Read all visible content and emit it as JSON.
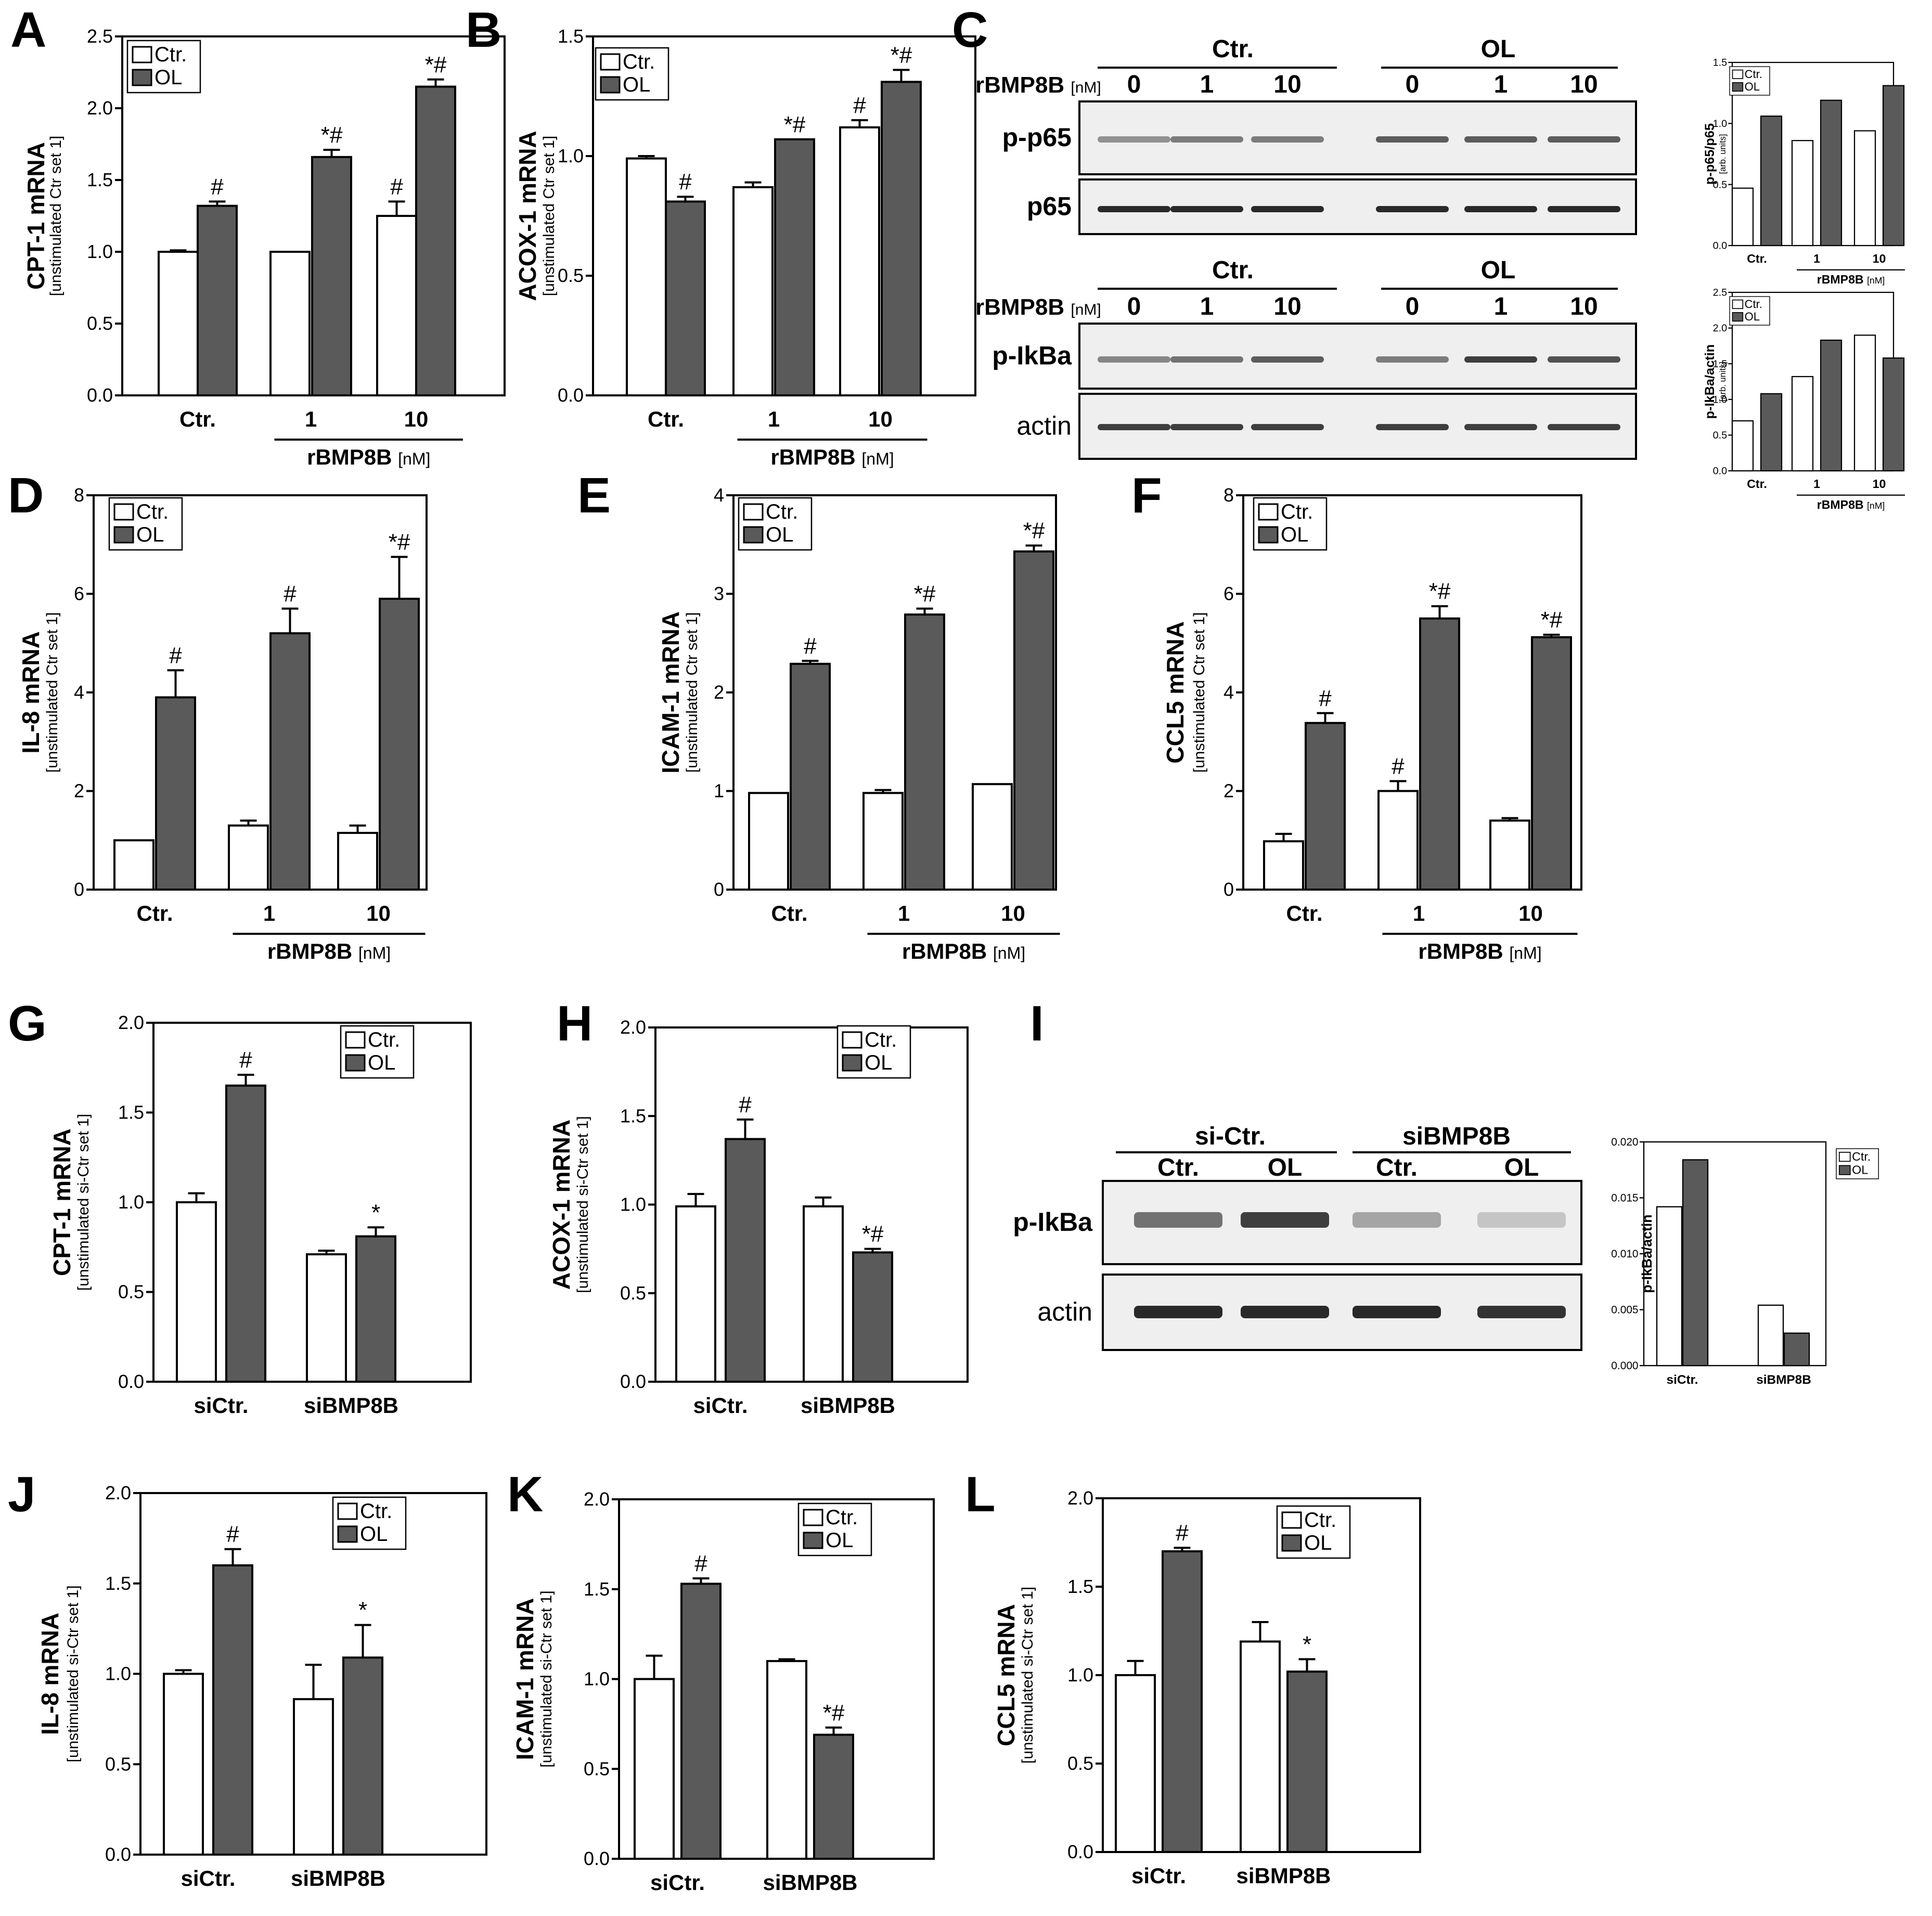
{
  "figure": {
    "colors": {
      "ctr_fill": "#ffffff",
      "ol_fill": "#5a5a5a",
      "axis": "#000000",
      "blot_bg": "#efefef",
      "band": "#1e1e1e"
    },
    "legend": {
      "ctr": "Ctr.",
      "ol": "OL"
    },
    "stim_labels": {
      "ctr": "Ctr.",
      "one": "1",
      "ten": "10",
      "group": "rBMP8B",
      "unit": "[nM]"
    },
    "si_labels": {
      "sictr": "siCtr.",
      "sibmp": "siBMP8B"
    },
    "panel_letters": [
      "A",
      "B",
      "C",
      "D",
      "E",
      "F",
      "G",
      "H",
      "I",
      "J",
      "K",
      "L"
    ],
    "blot_c": {
      "group_ctr": "Ctr.",
      "group_ol": "OL",
      "rbmp_label": "rBMP8B",
      "nm_label": "[nM]",
      "doses": [
        "0",
        "1",
        "10",
        "0",
        "1",
        "10"
      ],
      "rows_top": [
        "p-p65",
        "p65"
      ],
      "rows_bottom": [
        "p-IkBa",
        "actin"
      ]
    },
    "blot_i": {
      "group_sictr": "si-Ctr.",
      "group_sibmp": "siBMP8B",
      "lanes": [
        "Ctr.",
        "OL",
        "Ctr.",
        "OL"
      ],
      "rows": [
        "p-IkBa",
        "actin"
      ]
    }
  },
  "chart_data": [
    {
      "panel": "A",
      "type": "bar",
      "ylabel": "CPT-1 mRNA",
      "ylabel_sub": "[unstimulated Ctr set 1]",
      "ylim": [
        0,
        2.5
      ],
      "yticks": [
        "0.0",
        "0.5",
        "1.0",
        "1.5",
        "2.0",
        "2.5"
      ],
      "categories": [
        "Ctr.",
        "1",
        "10"
      ],
      "xgroup": "rBMP8B [nM]",
      "series": [
        {
          "name": "Ctr.",
          "values": [
            1.0,
            1.0,
            1.25
          ],
          "errors": [
            0.01,
            0,
            0.1
          ],
          "marks": [
            "",
            "",
            "#"
          ]
        },
        {
          "name": "OL",
          "values": [
            1.32,
            1.66,
            2.15
          ],
          "errors": [
            0.03,
            0.05,
            0.05
          ],
          "marks": [
            "#",
            "*#",
            "*#"
          ]
        }
      ]
    },
    {
      "panel": "B",
      "type": "bar",
      "ylabel": "ACOX-1 mRNA",
      "ylabel_sub": "[unstimulated Ctr set 1]",
      "ylim": [
        0,
        1.5
      ],
      "yticks": [
        "0.0",
        "0.5",
        "1.0",
        "1.5"
      ],
      "categories": [
        "Ctr.",
        "1",
        "10"
      ],
      "xgroup": "rBMP8B [nM]",
      "series": [
        {
          "name": "Ctr.",
          "values": [
            0.99,
            0.87,
            1.12
          ],
          "errors": [
            0.01,
            0.02,
            0.03
          ],
          "marks": [
            "",
            "",
            "#"
          ]
        },
        {
          "name": "OL",
          "values": [
            0.81,
            1.07,
            1.31
          ],
          "errors": [
            0.02,
            0,
            0.05
          ],
          "marks": [
            "#",
            "*#",
            "*#"
          ]
        }
      ]
    },
    {
      "panel": "C-top",
      "type": "bar",
      "ylabel": "p-p65/p65",
      "ylabel_sub": "[arb. units]",
      "ylim": [
        0,
        1.5
      ],
      "yticks": [
        "0.0",
        "0.5",
        "1.0",
        "1.5"
      ],
      "categories": [
        "Ctr.",
        "1",
        "10"
      ],
      "xgroup": "rBMP8B [nM]",
      "series": [
        {
          "name": "Ctr.",
          "values": [
            0.47,
            0.86,
            0.94
          ]
        },
        {
          "name": "OL",
          "values": [
            1.06,
            1.19,
            1.31
          ]
        }
      ]
    },
    {
      "panel": "C-bottom",
      "type": "bar",
      "ylabel": "p-IkBa/actin",
      "ylabel_sub": "[arb. units]",
      "ylim": [
        0,
        2.5
      ],
      "yticks": [
        "0.0",
        "0.5",
        "1.0",
        "1.5",
        "2.0",
        "2.5"
      ],
      "categories": [
        "Ctr.",
        "1",
        "10"
      ],
      "xgroup": "rBMP8B [nM]",
      "series": [
        {
          "name": "Ctr.",
          "values": [
            0.7,
            1.32,
            1.9
          ]
        },
        {
          "name": "OL",
          "values": [
            1.08,
            1.83,
            1.58
          ]
        }
      ]
    },
    {
      "panel": "D",
      "type": "bar",
      "ylabel": "IL-8 mRNA",
      "ylabel_sub": "[unstimulated Ctr set 1]",
      "ylim": [
        0,
        8
      ],
      "yticks": [
        "0",
        "2",
        "4",
        "6",
        "8"
      ],
      "categories": [
        "Ctr.",
        "1",
        "10"
      ],
      "xgroup": "rBMP8B [nM]",
      "series": [
        {
          "name": "Ctr.",
          "values": [
            1.0,
            1.3,
            1.15
          ],
          "errors": [
            0,
            0.1,
            0.15
          ],
          "marks": [
            "",
            "",
            ""
          ]
        },
        {
          "name": "OL",
          "values": [
            3.9,
            5.2,
            5.9
          ],
          "errors": [
            0.55,
            0.5,
            0.85
          ],
          "marks": [
            "#",
            "#",
            "*#"
          ]
        }
      ]
    },
    {
      "panel": "E",
      "type": "bar",
      "ylabel": "ICAM-1 mRNA",
      "ylabel_sub": "[unstimulated Ctr set 1]",
      "ylim": [
        0,
        4
      ],
      "yticks": [
        "0",
        "1",
        "2",
        "3",
        "4"
      ],
      "categories": [
        "Ctr.",
        "1",
        "10"
      ],
      "xgroup": "rBMP8B [nM]",
      "series": [
        {
          "name": "Ctr.",
          "values": [
            0.98,
            0.98,
            1.07
          ],
          "errors": [
            0,
            0.03,
            0
          ],
          "marks": [
            "",
            "",
            ""
          ]
        },
        {
          "name": "OL",
          "values": [
            2.29,
            2.79,
            3.43
          ],
          "errors": [
            0.03,
            0.06,
            0.06
          ],
          "marks": [
            "#",
            "*#",
            "*#"
          ]
        }
      ]
    },
    {
      "panel": "F",
      "type": "bar",
      "ylabel": "CCL5 mRNA",
      "ylabel_sub": "[unstimulated Ctr set 1]",
      "ylim": [
        0,
        8
      ],
      "yticks": [
        "0",
        "2",
        "4",
        "6",
        "8"
      ],
      "categories": [
        "Ctr.",
        "1",
        "10"
      ],
      "xgroup": "rBMP8B [nM]",
      "series": [
        {
          "name": "Ctr.",
          "values": [
            0.98,
            2.0,
            1.4
          ],
          "errors": [
            0.15,
            0.2,
            0.05
          ],
          "marks": [
            "",
            "#",
            ""
          ]
        },
        {
          "name": "OL",
          "values": [
            3.38,
            5.5,
            5.12
          ],
          "errors": [
            0.2,
            0.25,
            0.05
          ],
          "marks": [
            "#",
            "*#",
            "*#"
          ]
        }
      ]
    },
    {
      "panel": "G",
      "type": "bar",
      "ylabel": "CPT-1 mRNA",
      "ylabel_sub": "[unstimulated si-Ctr set 1]",
      "ylim": [
        0,
        2
      ],
      "yticks": [
        "0.0",
        "0.5",
        "1.0",
        "1.5",
        "2.0"
      ],
      "categories": [
        "siCtr.",
        "siBMP8B"
      ],
      "series": [
        {
          "name": "Ctr.",
          "values": [
            1.0,
            0.71
          ],
          "errors": [
            0.05,
            0.02
          ],
          "marks": [
            "",
            ""
          ]
        },
        {
          "name": "OL",
          "values": [
            1.65,
            0.81
          ],
          "errors": [
            0.06,
            0.05
          ],
          "marks": [
            "#",
            "*"
          ]
        }
      ]
    },
    {
      "panel": "H",
      "type": "bar",
      "ylabel": "ACOX-1 mRNA",
      "ylabel_sub": "[unstimulated si-Ctr set 1]",
      "ylim": [
        0,
        2
      ],
      "yticks": [
        "0.0",
        "0.5",
        "1.0",
        "1.5",
        "2.0"
      ],
      "categories": [
        "siCtr.",
        "siBMP8B"
      ],
      "series": [
        {
          "name": "Ctr.",
          "values": [
            0.99,
            0.99
          ],
          "errors": [
            0.07,
            0.05
          ],
          "marks": [
            "",
            ""
          ]
        },
        {
          "name": "OL",
          "values": [
            1.37,
            0.73
          ],
          "errors": [
            0.11,
            0.02
          ],
          "marks": [
            "#",
            "*#"
          ]
        }
      ]
    },
    {
      "panel": "I",
      "type": "bar",
      "ylabel": "p-IkBa/actin",
      "ylabel_sub": "[arbitray units]",
      "ylim": [
        0,
        0.02
      ],
      "yticks": [
        "0.000",
        "0.005",
        "0.010",
        "0.015",
        "0.020"
      ],
      "categories": [
        "siCtr.",
        "siBMP8B"
      ],
      "series": [
        {
          "name": "Ctr.",
          "values": [
            0.0142,
            0.0054
          ]
        },
        {
          "name": "OL",
          "values": [
            0.0184,
            0.0029
          ]
        }
      ]
    },
    {
      "panel": "J",
      "type": "bar",
      "ylabel": "IL-8 mRNA",
      "ylabel_sub": "[unstimulated si-Ctr set 1]",
      "ylim": [
        0,
        2
      ],
      "yticks": [
        "0.0",
        "0.5",
        "1.0",
        "1.5",
        "2.0"
      ],
      "categories": [
        "siCtr.",
        "siBMP8B"
      ],
      "series": [
        {
          "name": "Ctr.",
          "values": [
            1.0,
            0.86
          ],
          "errors": [
            0.02,
            0.19
          ],
          "marks": [
            "",
            ""
          ]
        },
        {
          "name": "OL",
          "values": [
            1.6,
            1.09
          ],
          "errors": [
            0.09,
            0.18
          ],
          "marks": [
            "#",
            "*"
          ]
        }
      ]
    },
    {
      "panel": "K",
      "type": "bar",
      "ylabel": "ICAM-1 mRNA",
      "ylabel_sub": "[unstimulated si-Ctr set 1]",
      "ylim": [
        0,
        2
      ],
      "yticks": [
        "0.0",
        "0.5",
        "1.0",
        "1.5",
        "2.0"
      ],
      "categories": [
        "siCtr.",
        "siBMP8B"
      ],
      "series": [
        {
          "name": "Ctr.",
          "values": [
            1.0,
            1.1
          ],
          "errors": [
            0.13,
            0.01
          ],
          "marks": [
            "",
            ""
          ]
        },
        {
          "name": "OL",
          "values": [
            1.53,
            0.69
          ],
          "errors": [
            0.03,
            0.04
          ],
          "marks": [
            "#",
            "*#"
          ]
        }
      ]
    },
    {
      "panel": "L",
      "type": "bar",
      "ylabel": "CCL5 mRNA",
      "ylabel_sub": "[unstimulated si-Ctr set 1]",
      "ylim": [
        0,
        2
      ],
      "yticks": [
        "0.0",
        "0.5",
        "1.0",
        "1.5",
        "2.0"
      ],
      "categories": [
        "siCtr.",
        "siBMP8B"
      ],
      "series": [
        {
          "name": "Ctr.",
          "values": [
            1.0,
            1.19
          ],
          "errors": [
            0.08,
            0.11
          ],
          "marks": [
            "",
            ""
          ]
        },
        {
          "name": "OL",
          "values": [
            1.7,
            1.02
          ],
          "errors": [
            0.02,
            0.07
          ],
          "marks": [
            "#",
            "*"
          ]
        }
      ]
    }
  ]
}
